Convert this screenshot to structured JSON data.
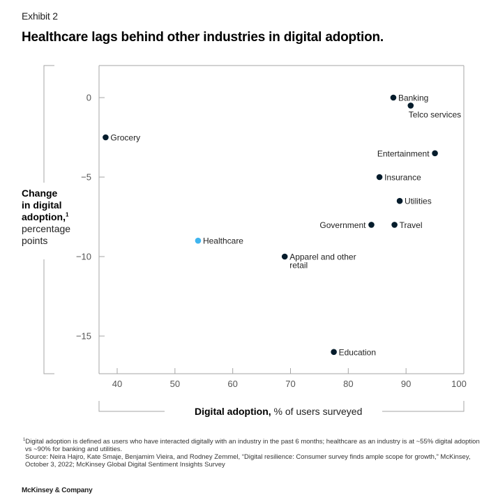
{
  "header": {
    "exhibit": "Exhibit 2",
    "title": "Healthcare lags behind other industries in digital adoption."
  },
  "colors": {
    "default_point": "#051c2c",
    "highlight_point": "#3fb5ef",
    "axis": "#a6a6a6"
  },
  "chart_data": {
    "type": "scatter",
    "title": "Healthcare lags behind other industries in digital adoption.",
    "xlabel": "Digital adoption, % of users surveyed",
    "xlabel_bold": "Digital adoption,",
    "xlabel_rest": " % of users surveyed",
    "ylabel": "Change in digital adoption,¹ percentage points",
    "ylabel_bold_lines": [
      "Change",
      "in digital",
      "adoption,"
    ],
    "ylabel_sup": "1",
    "ylabel_normal_lines": [
      "percentage",
      "points"
    ],
    "xlim": [
      37,
      100
    ],
    "ylim": [
      -17.4,
      2
    ],
    "xticks": [
      40,
      50,
      60,
      70,
      80,
      90,
      100
    ],
    "yticks": [
      0,
      -5,
      -10,
      -15
    ],
    "ytick_labels": [
      "0",
      "−5",
      "−10",
      "−15"
    ],
    "grid": false,
    "legend": "none",
    "points": [
      {
        "label": "Banking",
        "x": 87.8,
        "y": 0,
        "highlight": false,
        "label_pos": "right"
      },
      {
        "label": "Telco services",
        "x": 90.8,
        "y": -0.5,
        "highlight": false,
        "label_pos": "below"
      },
      {
        "label": "Grocery",
        "x": 38,
        "y": -2.5,
        "highlight": false,
        "label_pos": "right"
      },
      {
        "label": "Entertainment",
        "x": 95,
        "y": -3.5,
        "highlight": false,
        "label_pos": "left"
      },
      {
        "label": "Insurance",
        "x": 85.4,
        "y": -5,
        "highlight": false,
        "label_pos": "right"
      },
      {
        "label": "Utilities",
        "x": 88.9,
        "y": -6.5,
        "highlight": false,
        "label_pos": "right"
      },
      {
        "label": "Government",
        "x": 84,
        "y": -8,
        "highlight": false,
        "label_pos": "left"
      },
      {
        "label": "Travel",
        "x": 88,
        "y": -8,
        "highlight": false,
        "label_pos": "right"
      },
      {
        "label": "Healthcare",
        "x": 54,
        "y": -9,
        "highlight": true,
        "label_pos": "right"
      },
      {
        "label": "Apparel and other retail",
        "lines": [
          "Apparel and other",
          "retail"
        ],
        "x": 69,
        "y": -10,
        "highlight": false,
        "label_pos": "right"
      },
      {
        "label": "Education",
        "x": 77.5,
        "y": -16,
        "highlight": false,
        "label_pos": "right"
      }
    ]
  },
  "footnotes": {
    "note_sup": "1",
    "note_line1": "Digital adoption is defined as users who have interacted digitally with an industry in the past 6 months; healthcare as an industry is at ~55% digital adoption",
    "note_line2": "vs ~90% for banking and utilities.",
    "source_line1": "Source: Neira Hajro, Kate Smaje, Benjamim Vieira, and Rodney Zemmel, “Digital resilience: Consumer survey finds ample scope for growth,” McKinsey,",
    "source_line2": "October 3, 2022; McKinsey Global Digital Sentiment Insights Survey"
  },
  "brand": "McKinsey & Company"
}
